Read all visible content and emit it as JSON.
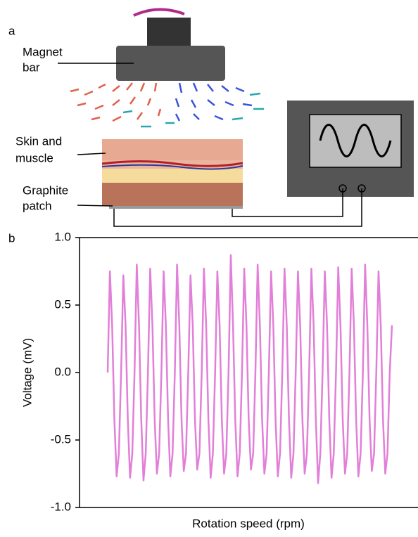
{
  "diagram": {
    "panel_label": "a",
    "magnet_label": [
      "Magnet",
      "bar"
    ],
    "skin_label": [
      "Skin and",
      "muscle"
    ],
    "patch_label": [
      "Graphite",
      "patch"
    ]
  },
  "chart_data": {
    "type": "line",
    "panel_label": "b",
    "x_label": "Rotation speed (rpm)",
    "y_label": "Voltage (mV)",
    "color": "#e27fd8",
    "ylim": [
      -1.0,
      1.0
    ],
    "yticks": [
      {
        "value": 1.0,
        "label": "1.0"
      },
      {
        "value": 0.5,
        "label": "0.5"
      },
      {
        "value": 0.0,
        "label": "0.0"
      },
      {
        "value": -0.5,
        "label": "-0.5"
      },
      {
        "value": -1.0,
        "label": "-1.0"
      }
    ],
    "values": [
      0,
      0.75,
      0.35,
      -0.35,
      -0.77,
      -0.6,
      0.0,
      0.72,
      0.35,
      -0.35,
      -0.78,
      -0.6,
      0.0,
      0.8,
      0.35,
      -0.35,
      -0.8,
      -0.6,
      0.0,
      0.77,
      0.35,
      -0.35,
      -0.75,
      -0.6,
      0.0,
      0.75,
      0.35,
      -0.35,
      -0.77,
      -0.6,
      0.0,
      0.8,
      0.35,
      -0.35,
      -0.73,
      -0.6,
      0.0,
      0.72,
      0.35,
      -0.35,
      -0.72,
      -0.6,
      0.0,
      0.77,
      0.35,
      -0.35,
      -0.78,
      -0.6,
      0.0,
      0.75,
      0.35,
      -0.35,
      -0.75,
      -0.6,
      0.0,
      0.87,
      0.35,
      -0.35,
      -0.77,
      -0.6,
      0.0,
      0.77,
      0.35,
      -0.35,
      -0.72,
      -0.6,
      0.0,
      0.8,
      0.35,
      -0.35,
      -0.75,
      -0.6,
      0.0,
      0.75,
      0.35,
      -0.35,
      -0.77,
      -0.6,
      0.0,
      0.77,
      0.35,
      -0.35,
      -0.78,
      -0.6,
      0.0,
      0.75,
      0.35,
      -0.35,
      -0.75,
      -0.6,
      0.0,
      0.77,
      0.35,
      -0.35,
      -0.82,
      -0.6,
      0.0,
      0.75,
      0.35,
      -0.35,
      -0.78,
      -0.6,
      0.0,
      0.78,
      0.35,
      -0.35,
      -0.75,
      -0.6,
      0.0,
      0.77,
      0.35,
      -0.35,
      -0.77,
      -0.6,
      0.0,
      0.8,
      0.35,
      -0.35,
      -0.73,
      -0.6,
      0.0,
      0.75,
      0.35,
      -0.35,
      -0.75,
      -0.6,
      0.0,
      0.35
    ]
  }
}
